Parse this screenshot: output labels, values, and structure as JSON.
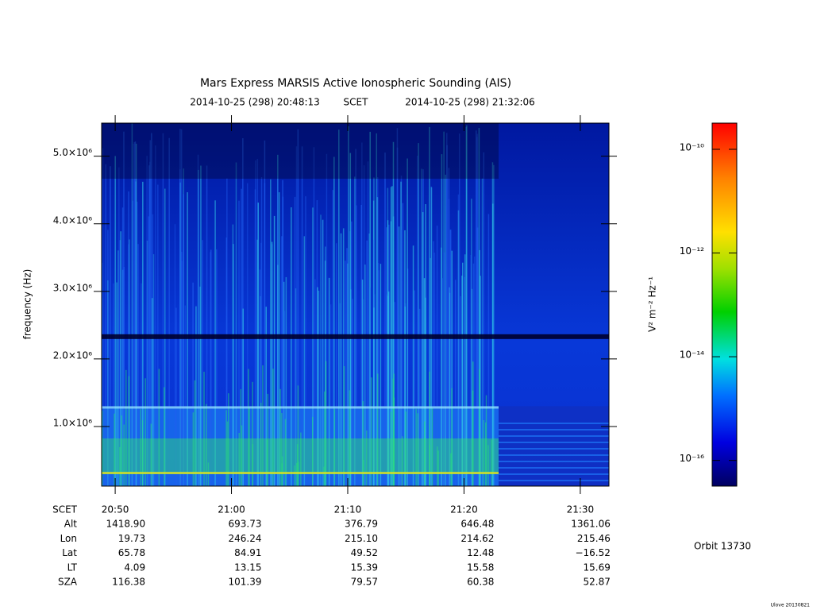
{
  "chart_data": {
    "type": "spectrogram",
    "title": "Mars Express MARSIS Active Ionospheric Sounding (AIS)",
    "start_time": "2014-10-25 (298) 20:48:13",
    "time_label": "SCET",
    "end_time": "2014-10-25 (298) 21:32:06",
    "y_label": "frequency (Hz)",
    "xlim": [
      "20:48:50",
      "21:32:28"
    ],
    "xticks": [
      "20:50",
      "21:00",
      "21:10",
      "21:20",
      "21:30"
    ],
    "ylim": [
      118000,
      5490000
    ],
    "yticks": [
      {
        "value": 1000000,
        "label": "1.0×10⁶"
      },
      {
        "value": 2000000,
        "label": "2.0×10⁶"
      },
      {
        "value": 3000000,
        "label": "3.0×10⁶"
      },
      {
        "value": 4000000,
        "label": "4.0×10⁶"
      },
      {
        "value": 5000000,
        "label": "5.0×10⁶"
      }
    ],
    "colorbar": {
      "label": "V² m⁻² Hz⁻¹",
      "log_scale": true,
      "zlim": [
        3.2e-17,
        3.2e-10
      ],
      "ticks": [
        {
          "value": 1e-10,
          "label": "10⁻¹⁰"
        },
        {
          "value": 1e-12,
          "label": "10⁻¹²"
        },
        {
          "value": 1e-14,
          "label": "10⁻¹⁴"
        },
        {
          "value": 1e-16,
          "label": "10⁻¹⁶"
        }
      ]
    },
    "ephemeris": {
      "labels": [
        "SCET",
        "Alt",
        "Lon",
        "Lat",
        "LT",
        "SZA"
      ],
      "rows": [
        [
          "1418.90",
          "693.73",
          "376.79",
          "646.48",
          "1361.06"
        ],
        [
          "19.73",
          "246.24",
          "215.10",
          "214.62",
          "215.46"
        ],
        [
          "65.78",
          "84.91",
          "49.52",
          "12.48",
          "−16.52"
        ],
        [
          "4.09",
          "13.15",
          "15.39",
          "15.58",
          "15.69"
        ],
        [
          "116.38",
          "101.39",
          "79.57",
          "60.38",
          "52.87"
        ]
      ]
    },
    "orbit": "Orbit 13730",
    "version": "Ulove 20130821"
  }
}
